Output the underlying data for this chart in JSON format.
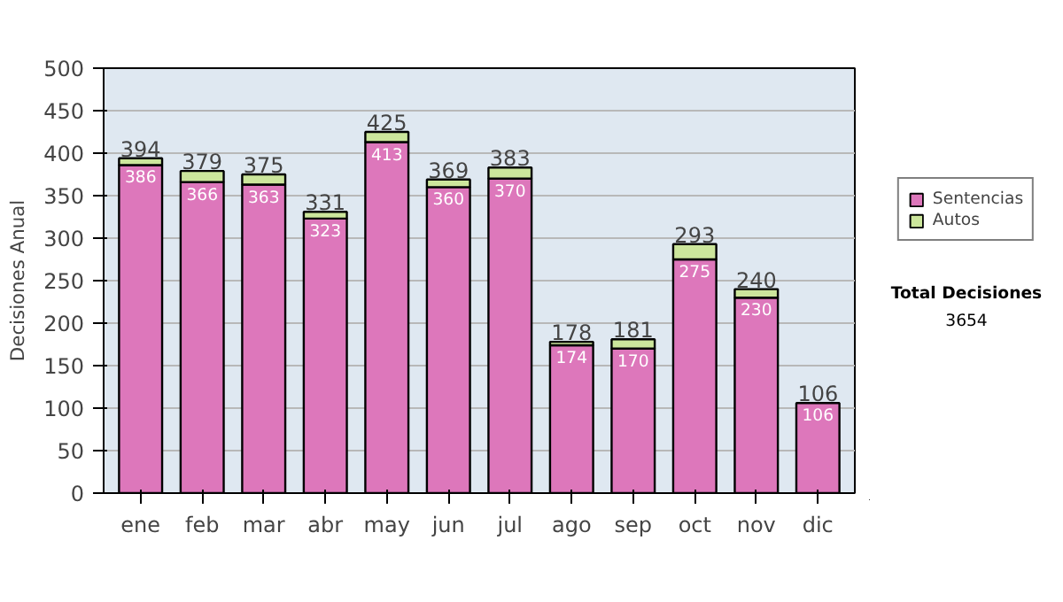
{
  "chart_data": {
    "type": "bar",
    "stacked": true,
    "ylabel": "Decisiones Anual",
    "categories": [
      "ene",
      "feb",
      "mar",
      "abr",
      "may",
      "jun",
      "jul",
      "ago",
      "sep",
      "oct",
      "nov",
      "dic"
    ],
    "series": [
      {
        "name": "Sentencias",
        "color": "#dd77bb",
        "values": [
          386,
          366,
          363,
          323,
          413,
          360,
          370,
          174,
          170,
          275,
          230,
          106
        ],
        "value_labels": [
          "386",
          "366",
          "363",
          "323",
          "413",
          "360",
          "370",
          "174",
          "170",
          "275",
          "230",
          "106"
        ]
      },
      {
        "name": "Autos",
        "color": "#cce69c",
        "values": [
          8,
          13,
          12,
          8,
          12,
          9,
          13,
          4,
          11,
          18,
          10,
          0
        ]
      }
    ],
    "totals": [
      "394",
      "379",
      "375",
      "331",
      "425",
      "369",
      "383",
      "178",
      "181",
      "293",
      "240",
      "106"
    ],
    "ylim": [
      0,
      500
    ],
    "yticks": [
      0,
      50,
      100,
      150,
      200,
      250,
      300,
      350,
      400,
      450,
      500
    ],
    "grid": "y",
    "legend": "right",
    "annotations": [
      "Total Decisiones",
      "3654"
    ]
  }
}
